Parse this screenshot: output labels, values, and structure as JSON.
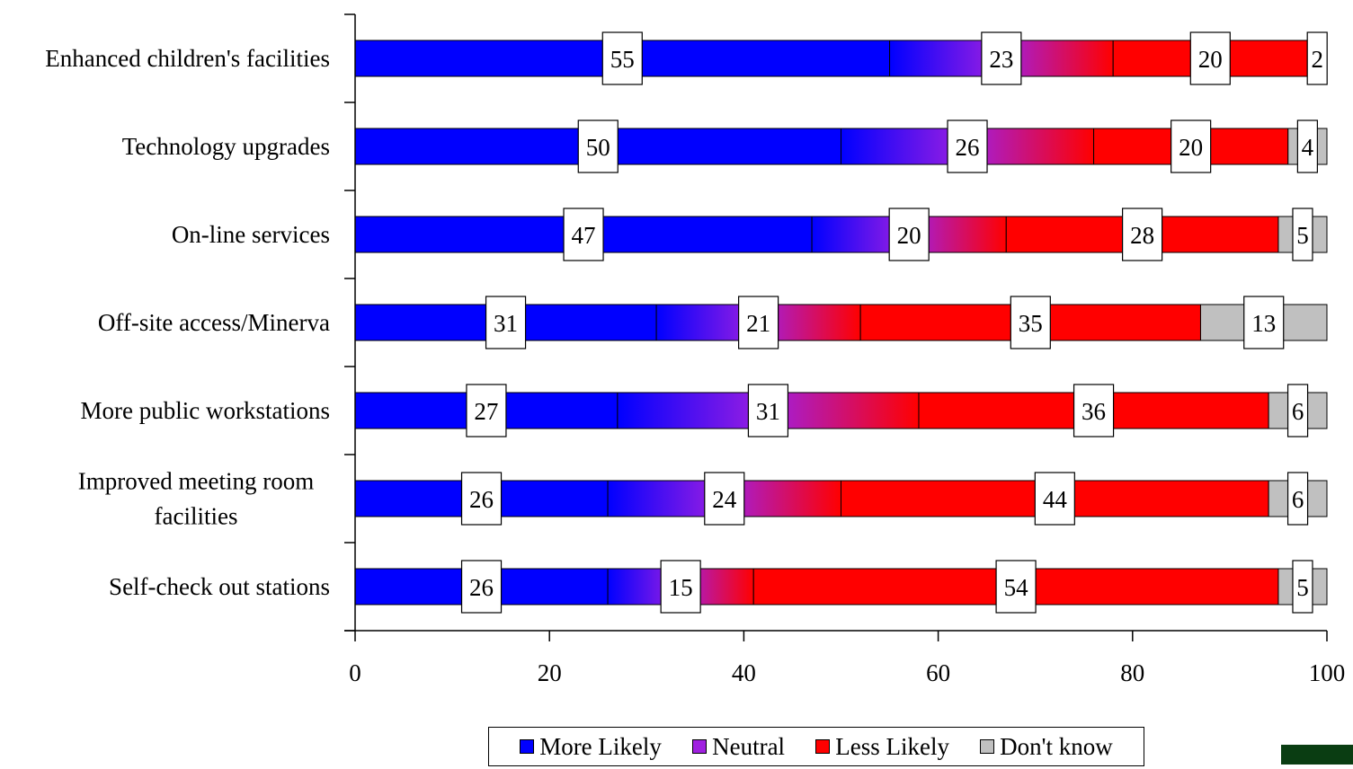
{
  "chart_data": {
    "type": "bar",
    "stacked": true,
    "orientation": "horizontal",
    "title": "",
    "xlabel": "",
    "ylabel": "",
    "xlim": [
      0,
      100
    ],
    "x_ticks": [
      "0",
      "20",
      "40",
      "60",
      "80",
      "100"
    ],
    "categories": [
      "Enhanced children's facilities",
      "Technology upgrades",
      "On-line services",
      "Off-site access/Minerva",
      "More public workstations",
      "Improved meeting room facilities",
      "Self-check out stations"
    ],
    "series": [
      {
        "name": "More Likely",
        "color": "#0000ff",
        "values": [
          55,
          50,
          47,
          31,
          27,
          26,
          26
        ]
      },
      {
        "name": "Neutral",
        "color": "#a020e0",
        "values": [
          23,
          26,
          20,
          21,
          31,
          24,
          15
        ]
      },
      {
        "name": "Less Likely",
        "color": "#ff0000",
        "values": [
          20,
          20,
          28,
          35,
          36,
          44,
          54
        ]
      },
      {
        "name": "Don't know",
        "color": "#c0c0c0",
        "values": [
          2,
          4,
          5,
          13,
          6,
          6,
          5
        ]
      }
    ],
    "grid": false,
    "data_labels": true,
    "legend_position": "bottom"
  }
}
